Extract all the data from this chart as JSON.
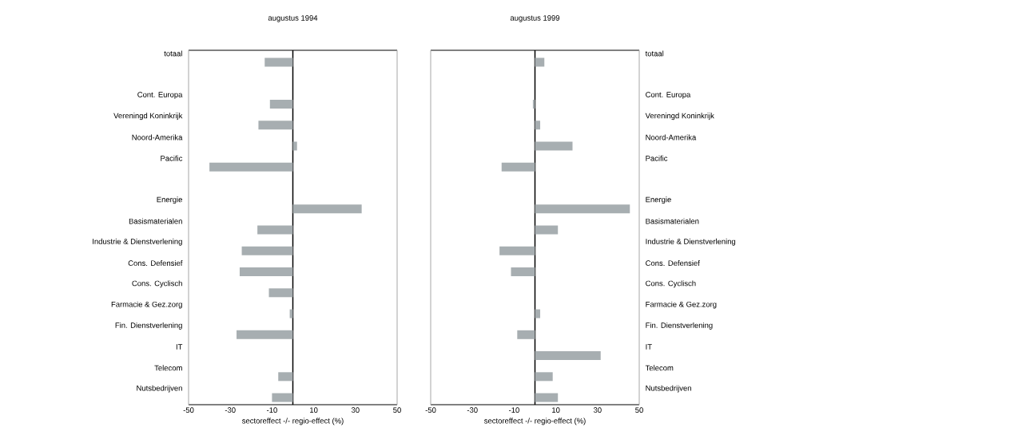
{
  "chart_data": [
    {
      "type": "bar",
      "orientation": "horizontal",
      "title": "augustus 1994",
      "xlabel": "sectoreffect -/- regio-effect (%)",
      "categories": [
        "totaal",
        null,
        "Cont. Europa",
        "Vereningd Koninkrijk",
        "Noord-Amerika",
        "Pacific",
        null,
        "Energie",
        "Basismaterialen",
        "Industrie & Dienstverlening",
        "Cons. Defensief",
        "Cons. Cyclisch",
        "Farmacie & Gez.zorg",
        "Fin. Dienstverlening",
        "IT",
        "Telecom",
        "Nutsbedrijven"
      ],
      "values": [
        -13.5,
        null,
        -11,
        -16.5,
        2,
        -40,
        null,
        33,
        -17,
        -24.5,
        -25.5,
        -11.5,
        -1.5,
        -27,
        0,
        -7,
        -10
      ],
      "color": "#a7aeb1",
      "xlim": [
        -50,
        50
      ],
      "xticks": [
        -50,
        -30,
        -10,
        10,
        30,
        50
      ]
    },
    {
      "type": "bar",
      "orientation": "horizontal",
      "title": "augustus 1999",
      "xlabel": "sectoreffect -/- regio-effect (%)",
      "categories": [
        "totaal",
        null,
        "Cont. Europa",
        "Vereningd Koninkrijk",
        "Noord-Amerika",
        "Pacific",
        null,
        "Energie",
        "Basismaterialen",
        "Industrie & Dienstverlening",
        "Cons. Defensief",
        "Cons. Cyclisch",
        "Farmacie & Gez.zorg",
        "Fin. Dienstverlening",
        "IT",
        "Telecom",
        "Nutsbedrijven"
      ],
      "values": [
        4.5,
        null,
        -1,
        2.5,
        18,
        -16,
        null,
        45.5,
        11,
        -17,
        -11.5,
        0,
        2.5,
        -8.5,
        31.5,
        8.5,
        11
      ],
      "color": "#a7aeb1",
      "xlim": [
        -50,
        50
      ],
      "xticks": [
        -50,
        -30,
        -10,
        10,
        30,
        50
      ]
    }
  ]
}
